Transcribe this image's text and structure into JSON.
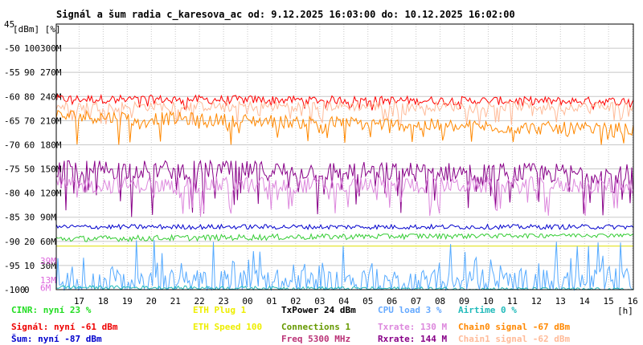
{
  "chart_data": {
    "type": "line",
    "title": "Signál a šum radia c_karesova_ac od: 9.12.2025 16:03:00 do: 10.12.2025 16:02:00",
    "y_units": "[dBm] [%]",
    "x_unit": "[h]",
    "x_ticks": [
      "17",
      "18",
      "19",
      "20",
      "21",
      "22",
      "23",
      "00",
      "01",
      "02",
      "03",
      "04",
      "05",
      "06",
      "07",
      "08",
      "09",
      "10",
      "11",
      "12",
      "13",
      "14",
      "15",
      "16"
    ],
    "y_labels": [
      {
        "dbm": "45",
        "pct": "",
        "rate": ""
      },
      {
        "dbm": "-50",
        "pct": "100",
        "rate": "300M"
      },
      {
        "dbm": "-55",
        "pct": "90",
        "rate": "270M"
      },
      {
        "dbm": "-60",
        "pct": "80",
        "rate": "240M"
      },
      {
        "dbm": "-65",
        "pct": "70",
        "rate": "210M"
      },
      {
        "dbm": "-70",
        "pct": "60",
        "rate": "180M"
      },
      {
        "dbm": "-75",
        "pct": "50",
        "rate": "150M"
      },
      {
        "dbm": "-80",
        "pct": "40",
        "rate": "120M"
      },
      {
        "dbm": "-85",
        "pct": "30",
        "rate": "90M"
      },
      {
        "dbm": "-90",
        "pct": "20",
        "rate": "60M"
      },
      {
        "dbm": "-95",
        "pct": "10",
        "rate": "30M"
      },
      {
        "dbm": "-100",
        "pct": "0",
        "rate": ""
      }
    ],
    "extra_axis_labels": [
      {
        "text": "39M",
        "dbm": -94,
        "color": "#dd66dd"
      },
      {
        "text": "13M",
        "dbm": -98,
        "color": "#dd66dd"
      },
      {
        "text": "6M",
        "dbm": -99.6,
        "color": "#dd66dd"
      }
    ],
    "ylim": [
      -100,
      -45
    ],
    "xlim": [
      16.05,
      40.03
    ],
    "grid": true,
    "series": [
      {
        "name": "Signál",
        "color": "#ff0000",
        "unit": "dBm",
        "current": -61,
        "start": -60.5,
        "range": [
          -63,
          -58
        ]
      },
      {
        "name": "Chain1 signal",
        "color": "#ffbb99",
        "unit": "dBm",
        "current": -62,
        "start": -62,
        "range": [
          -66,
          -60
        ]
      },
      {
        "name": "Chain0 signal",
        "color": "#ff8800",
        "unit": "dBm",
        "current": -67,
        "start": -64,
        "range": [
          -70,
          -62
        ]
      },
      {
        "name": "Rxrate",
        "color": "#880088",
        "unit": "M",
        "current": 144,
        "start": 150,
        "range": [
          90,
          160
        ]
      },
      {
        "name": "Txrate",
        "color": "#dd88dd",
        "unit": "M",
        "current": 130,
        "start": 130,
        "range": [
          90,
          150
        ]
      },
      {
        "name": "Šum",
        "color": "#0000cc",
        "unit": "dBm",
        "current": -87,
        "start": -87,
        "range": [
          -88,
          -86
        ]
      },
      {
        "name": "CINR",
        "color": "#33cc33",
        "unit": "%",
        "current": 23,
        "start": 21,
        "range": [
          18,
          23
        ]
      },
      {
        "name": "ETH Speed",
        "color": "#dddd00",
        "unit": "",
        "current": 100,
        "start": 100,
        "range": [
          100,
          100
        ]
      },
      {
        "name": "CPU load",
        "color": "#55aaff",
        "unit": "%",
        "current": 3,
        "start": 2,
        "range": [
          0,
          35
        ]
      },
      {
        "name": "Airtime",
        "color": "#22bbbb",
        "unit": "%",
        "current": 0,
        "start": 1,
        "range": [
          0,
          3
        ]
      }
    ],
    "legend": {
      "placement": "bottom",
      "items": [
        {
          "label": "CINR: nyní 23 %",
          "color": "#22dd22",
          "col": 0,
          "row": 0
        },
        {
          "label": "Signál: nyní -61 dBm",
          "color": "#ee0000",
          "col": 0,
          "row": 1
        },
        {
          "label": "Šum: nyní -87 dBm",
          "color": "#0000cc",
          "col": 0,
          "row": 2
        },
        {
          "label": "ETH Plug 1",
          "color": "#eeee00",
          "col": 1,
          "row": 0
        },
        {
          "label": "ETH Speed 100",
          "color": "#eeee00",
          "col": 1,
          "row": 1
        },
        {
          "label": "TxPower 24 dBm",
          "color": "#000000",
          "col": 2,
          "row": 0
        },
        {
          "label": "Connections 1",
          "color": "#669900",
          "col": 2,
          "row": 1
        },
        {
          "label": "Freq 5300 MHz",
          "color": "#bb3377",
          "col": 2,
          "row": 2
        },
        {
          "label": "CPU load 3 %",
          "color": "#66aaff",
          "col": 3,
          "row": 0
        },
        {
          "label": "Txrate: 130 M",
          "color": "#dd88dd",
          "col": 3,
          "row": 1
        },
        {
          "label": "Rxrate: 144 M",
          "color": "#880088",
          "col": 3,
          "row": 2
        },
        {
          "label": "Airtime 0 %",
          "color": "#22bbbb",
          "col": 4,
          "row": 0
        },
        {
          "label": "Chain0 signal -67 dBm",
          "color": "#ff8800",
          "col": 4,
          "row": 1
        },
        {
          "label": "Chain1 signal -62 dBm",
          "color": "#ffbb99",
          "col": 4,
          "row": 2
        }
      ]
    }
  }
}
